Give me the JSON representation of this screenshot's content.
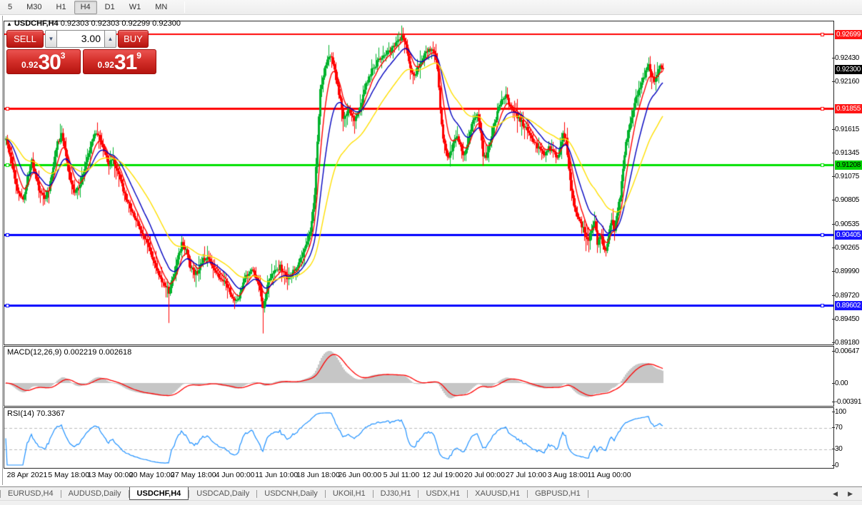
{
  "toolbar": {
    "timeframes": [
      "5",
      "M30",
      "H1",
      "H4",
      "D1",
      "W1",
      "MN"
    ],
    "active_timeframe": "H4"
  },
  "chart_header": {
    "collapse_arrow": "▲",
    "symbol": "USDCHF,H4",
    "ohlc_values": "0.92303 0.92303 0.92299 0.92300"
  },
  "trade_panel": {
    "sell_label": "SELL",
    "buy_label": "BUY",
    "volume_value": "3.00",
    "volume_down_icon": "▼",
    "volume_up_icon": "▲",
    "sell_price": {
      "prefix": "0.92",
      "big": "30",
      "sup": "3"
    },
    "buy_price": {
      "prefix": "0.92",
      "big": "31",
      "sup": "9"
    }
  },
  "chart_data": {
    "type": "candlestick",
    "symbol": "USDCHF",
    "timeframe": "H4",
    "up_color": "#00b22c",
    "down_color": "#ff0000",
    "x_axis_labels": [
      "28 Apr 2021",
      "5 May 18:00",
      "13 May 00:00",
      "20 May 10:00",
      "27 May 18:00",
      "4 Jun 00:00",
      "11 Jun 10:00",
      "18 Jun 18:00",
      "26 Jun 00:00",
      "5 Jul 11:00",
      "12 Jul 19:00",
      "20 Jul 00:00",
      "27 Jul 10:00",
      "3 Aug 18:00",
      "11 Aug 00:00"
    ],
    "price_axis": {
      "ticks": [
        "0.92430",
        "0.92160",
        "0.91615",
        "0.91345",
        "0.91075",
        "0.90805",
        "0.90535",
        "0.90265",
        "0.89990",
        "0.89720",
        "0.89450",
        "0.89180"
      ],
      "badges": [
        {
          "value": "0.92699",
          "bg": "#ff1616",
          "fg": "#ffffff"
        },
        {
          "value": "0.92300",
          "bg": "#000000",
          "fg": "#ffffff"
        },
        {
          "value": "0.91855",
          "bg": "#ff1616",
          "fg": "#ffffff"
        },
        {
          "value": "0.91208",
          "bg": "#00d400",
          "fg": "#000000"
        },
        {
          "value": "0.90405",
          "bg": "#1a14ff",
          "fg": "#ffffff"
        },
        {
          "value": "0.89602",
          "bg": "#1a14ff",
          "fg": "#ffffff"
        }
      ]
    },
    "hlines": [
      {
        "price": 0.92699,
        "color": "#ff0000",
        "width": 2,
        "handles": "right"
      },
      {
        "price": 0.91855,
        "color": "#ff0000",
        "width": 3,
        "handles": "both"
      },
      {
        "price": 0.91208,
        "color": "#00e000",
        "width": 3,
        "handles": "both"
      },
      {
        "price": 0.90405,
        "color": "#0000ff",
        "width": 3,
        "handles": "both"
      },
      {
        "price": 0.89602,
        "color": "#0000ff",
        "width": 3,
        "handles": "both"
      }
    ],
    "moving_averages": [
      {
        "period": 8,
        "color": "#ff0000"
      },
      {
        "period": 18,
        "color": "#0000bf"
      },
      {
        "period": 42,
        "color": "#ffdf00"
      }
    ],
    "close_path": [
      [
        8,
        0.915
      ],
      [
        14,
        0.913
      ],
      [
        20,
        0.9105
      ],
      [
        26,
        0.9088
      ],
      [
        32,
        0.9082
      ],
      [
        38,
        0.9105
      ],
      [
        44,
        0.9125
      ],
      [
        50,
        0.9105
      ],
      [
        56,
        0.9088
      ],
      [
        62,
        0.9082
      ],
      [
        68,
        0.9092
      ],
      [
        74,
        0.912
      ],
      [
        80,
        0.9145
      ],
      [
        86,
        0.9155
      ],
      [
        92,
        0.913
      ],
      [
        98,
        0.9105
      ],
      [
        104,
        0.9088
      ],
      [
        110,
        0.9095
      ],
      [
        116,
        0.911
      ],
      [
        122,
        0.9128
      ],
      [
        128,
        0.9148
      ],
      [
        134,
        0.9158
      ],
      [
        140,
        0.915
      ],
      [
        146,
        0.9135
      ],
      [
        152,
        0.9122
      ],
      [
        158,
        0.9128
      ],
      [
        164,
        0.9112
      ],
      [
        170,
        0.9098
      ],
      [
        176,
        0.9082
      ],
      [
        182,
        0.9072
      ],
      [
        188,
        0.9062
      ],
      [
        194,
        0.905
      ],
      [
        200,
        0.904
      ],
      [
        206,
        0.903
      ],
      [
        212,
        0.9018
      ],
      [
        218,
        0.9002
      ],
      [
        224,
        0.8992
      ],
      [
        230,
        0.8984
      ],
      [
        236,
        0.8976
      ],
      [
        242,
        0.8992
      ],
      [
        248,
        0.9012
      ],
      [
        254,
        0.903
      ],
      [
        260,
        0.9022
      ],
      [
        266,
        0.9004
      ],
      [
        272,
        0.8996
      ],
      [
        278,
        0.9
      ],
      [
        284,
        0.9012
      ],
      [
        290,
        0.9016
      ],
      [
        296,
        0.9006
      ],
      [
        302,
        0.8998
      ],
      [
        308,
        0.8992
      ],
      [
        314,
        0.8986
      ],
      [
        320,
        0.8978
      ],
      [
        326,
        0.8966
      ],
      [
        332,
        0.8964
      ],
      [
        338,
        0.898
      ],
      [
        344,
        0.8992
      ],
      [
        350,
        0.9
      ],
      [
        356,
        0.8996
      ],
      [
        362,
        0.8984
      ],
      [
        368,
        0.8956
      ],
      [
        374,
        0.8984
      ],
      [
        380,
        0.8994
      ],
      [
        386,
        0.9
      ],
      [
        392,
        0.9004
      ],
      [
        398,
        0.8996
      ],
      [
        404,
        0.899
      ],
      [
        410,
        0.8998
      ],
      [
        416,
        0.9006
      ],
      [
        422,
        0.9016
      ],
      [
        428,
        0.903
      ],
      [
        434,
        0.9046
      ],
      [
        440,
        0.9085
      ],
      [
        444,
        0.915
      ],
      [
        448,
        0.9205
      ],
      [
        452,
        0.9222
      ],
      [
        456,
        0.9235
      ],
      [
        460,
        0.9246
      ],
      [
        464,
        0.9242
      ],
      [
        468,
        0.923
      ],
      [
        472,
        0.921
      ],
      [
        476,
        0.9195
      ],
      [
        480,
        0.9175
      ],
      [
        484,
        0.9176
      ],
      [
        488,
        0.9183
      ],
      [
        492,
        0.9178
      ],
      [
        496,
        0.9172
      ],
      [
        500,
        0.9178
      ],
      [
        504,
        0.9188
      ],
      [
        508,
        0.92
      ],
      [
        512,
        0.9212
      ],
      [
        516,
        0.9222
      ],
      [
        520,
        0.9228
      ],
      [
        524,
        0.9232
      ],
      [
        528,
        0.9238
      ],
      [
        532,
        0.9242
      ],
      [
        536,
        0.9246
      ],
      [
        540,
        0.9248
      ],
      [
        544,
        0.925
      ],
      [
        548,
        0.9252
      ],
      [
        552,
        0.9257
      ],
      [
        556,
        0.926
      ],
      [
        560,
        0.9265
      ],
      [
        564,
        0.9268
      ],
      [
        568,
        0.9258
      ],
      [
        572,
        0.924
      ],
      [
        576,
        0.9225
      ],
      [
        580,
        0.9222
      ],
      [
        584,
        0.923
      ],
      [
        588,
        0.9238
      ],
      [
        592,
        0.9244
      ],
      [
        596,
        0.9248
      ],
      [
        600,
        0.9252
      ],
      [
        604,
        0.9255
      ],
      [
        608,
        0.9248
      ],
      [
        612,
        0.9232
      ],
      [
        616,
        0.9185
      ],
      [
        620,
        0.915
      ],
      [
        624,
        0.9135
      ],
      [
        628,
        0.913
      ],
      [
        632,
        0.9138
      ],
      [
        636,
        0.9148
      ],
      [
        640,
        0.9152
      ],
      [
        644,
        0.9142
      ],
      [
        648,
        0.9132
      ],
      [
        652,
        0.9136
      ],
      [
        656,
        0.915
      ],
      [
        660,
        0.9165
      ],
      [
        664,
        0.9175
      ],
      [
        668,
        0.9178
      ],
      [
        672,
        0.9162
      ],
      [
        676,
        0.913
      ],
      [
        680,
        0.9128
      ],
      [
        684,
        0.9142
      ],
      [
        688,
        0.9155
      ],
      [
        692,
        0.9168
      ],
      [
        696,
        0.918
      ],
      [
        700,
        0.919
      ],
      [
        704,
        0.9196
      ],
      [
        708,
        0.92
      ],
      [
        712,
        0.9192
      ],
      [
        716,
        0.9186
      ],
      [
        720,
        0.9181
      ],
      [
        726,
        0.9174
      ],
      [
        732,
        0.9167
      ],
      [
        738,
        0.916
      ],
      [
        744,
        0.9151
      ],
      [
        750,
        0.9143
      ],
      [
        756,
        0.9137
      ],
      [
        762,
        0.9132
      ],
      [
        768,
        0.914
      ],
      [
        774,
        0.9136
      ],
      [
        780,
        0.9128
      ],
      [
        784,
        0.914
      ],
      [
        788,
        0.9155
      ],
      [
        792,
        0.915
      ],
      [
        796,
        0.9115
      ],
      [
        800,
        0.909
      ],
      [
        804,
        0.9072
      ],
      [
        808,
        0.9062
      ],
      [
        812,
        0.9055
      ],
      [
        816,
        0.9048
      ],
      [
        820,
        0.904
      ],
      [
        824,
        0.9035
      ],
      [
        828,
        0.9046
      ],
      [
        832,
        0.9058
      ],
      [
        836,
        0.903
      ],
      [
        840,
        0.9042
      ],
      [
        844,
        0.903
      ],
      [
        848,
        0.9022
      ],
      [
        852,
        0.9042
      ],
      [
        856,
        0.9056
      ],
      [
        860,
        0.9048
      ],
      [
        864,
        0.9066
      ],
      [
        868,
        0.9086
      ],
      [
        872,
        0.9118
      ],
      [
        876,
        0.9145
      ],
      [
        880,
        0.916
      ],
      [
        884,
        0.9176
      ],
      [
        888,
        0.919
      ],
      [
        892,
        0.9202
      ],
      [
        896,
        0.921
      ],
      [
        900,
        0.9218
      ],
      [
        904,
        0.9228
      ],
      [
        908,
        0.9236
      ],
      [
        912,
        0.9224
      ],
      [
        916,
        0.9218
      ],
      [
        920,
        0.9226
      ],
      [
        924,
        0.9232
      ],
      [
        928,
        0.923
      ]
    ],
    "special_wicks": [
      [
        236,
        "low",
        0.894
      ],
      [
        368,
        "low",
        0.8928
      ],
      [
        564,
        "high",
        0.9272
      ],
      [
        836,
        "low",
        0.902
      ],
      [
        848,
        "low",
        0.9016
      ]
    ],
    "macd": {
      "label": "MACD(12,26,9)",
      "value_main": "0.002219",
      "value_signal": "0.002618",
      "fast": 12,
      "slow": 26,
      "signal": 9,
      "hist_color": "#c6c6c6",
      "signal_color": "#ff0000",
      "axis_ticks": [
        "0.00647",
        "0.00",
        "-0.00391"
      ]
    },
    "rsi": {
      "label": "RSI(14)",
      "value": "70.3367",
      "period": 14,
      "color": "#1e90ff",
      "level_color": "#b8b8b8",
      "levels": [
        70,
        30
      ],
      "axis_ticks": [
        "100",
        "70",
        "30",
        "0"
      ]
    }
  },
  "bottom_tabs": {
    "items": [
      "EURUSD,H4",
      "AUDUSD,Daily",
      "USDCHF,H4",
      "USDCAD,Daily",
      "USDCNH,Daily",
      "UKOil,H1",
      "DJ30,H1",
      "USDX,H1",
      "XAUUSD,H1",
      "GBPUSD,H1"
    ],
    "active": "USDCHF,H4",
    "scroll_left_icon": "◀",
    "scroll_right_icon": "▶"
  }
}
